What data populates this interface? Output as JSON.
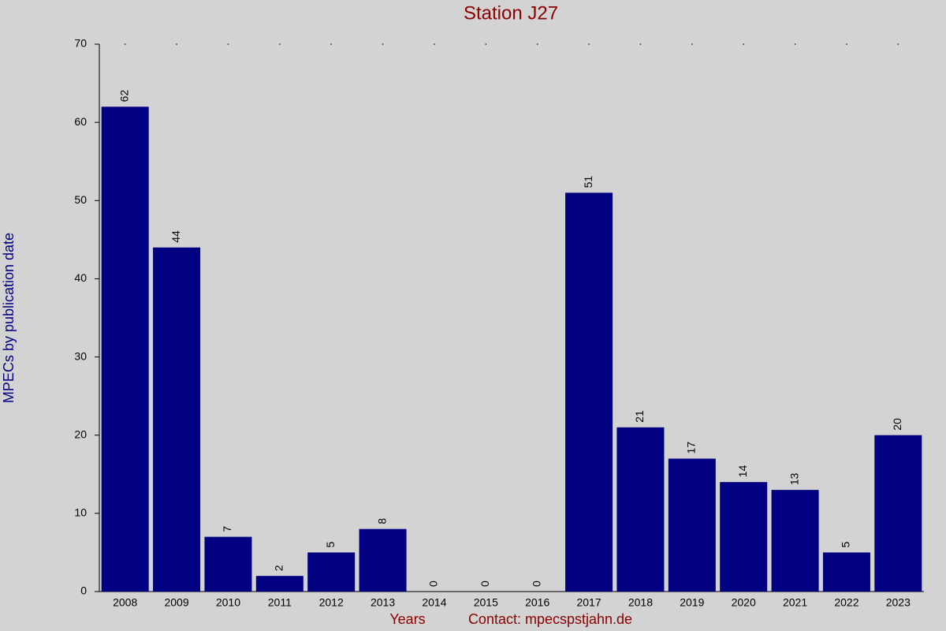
{
  "chart_data": {
    "type": "bar",
    "title": "Station J27",
    "y_label": "MPECs by publication date",
    "x_label": "Years",
    "contact": "Contact: mpecspstjahn.de",
    "categories": [
      "2008",
      "2009",
      "2010",
      "2011",
      "2012",
      "2013",
      "2014",
      "2015",
      "2016",
      "2017",
      "2018",
      "2019",
      "2020",
      "2021",
      "2022",
      "2023"
    ],
    "values": [
      62,
      44,
      7,
      2,
      5,
      8,
      0,
      0,
      0,
      51,
      21,
      17,
      14,
      13,
      5,
      20
    ],
    "color": "#000080",
    "ylim": [
      0,
      70
    ],
    "yticks": [
      0,
      10,
      20,
      30,
      40,
      50,
      60,
      70
    ],
    "grid": false
  }
}
